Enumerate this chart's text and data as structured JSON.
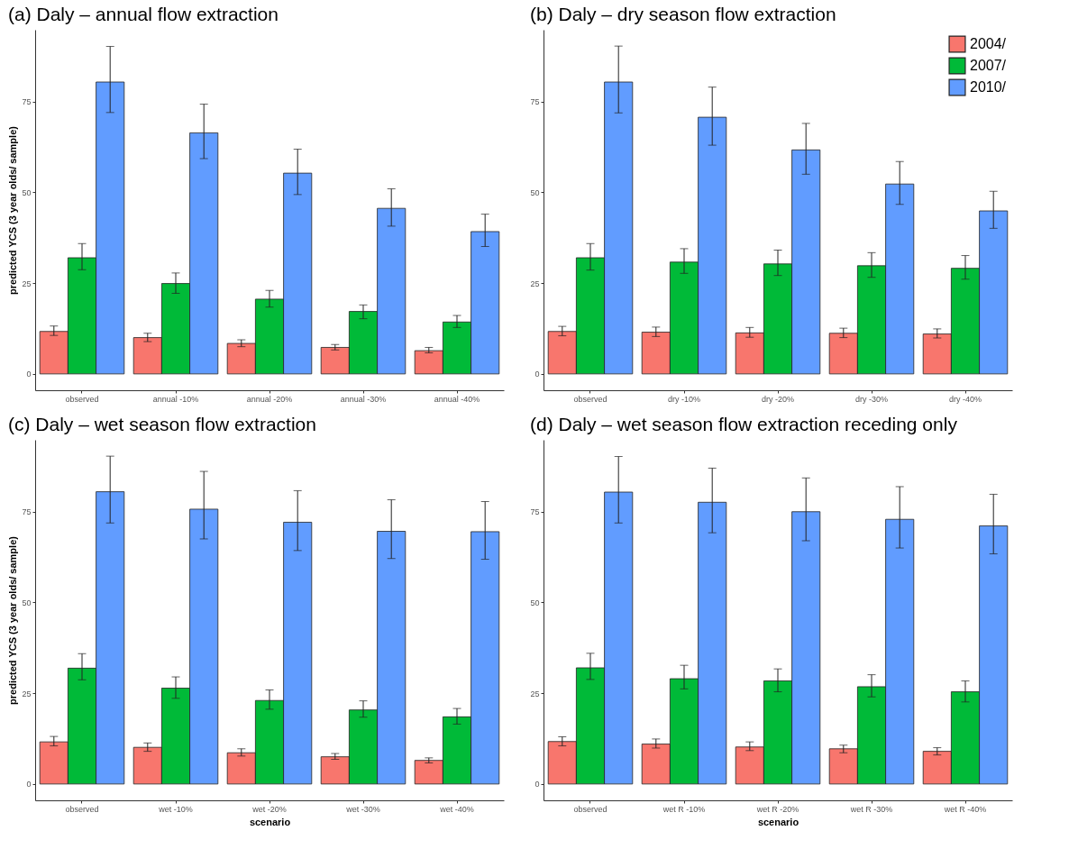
{
  "chart_data": [
    {
      "type": "bar",
      "title": "(a) Daly – annual flow extraction",
      "ylabel": "predicted YCS (3 year olds/ sample)",
      "categories": [
        "observed",
        "annual -10%",
        "annual -20%",
        "annual -30%",
        "annual -40%"
      ],
      "ylim": [
        -4.5,
        94.8
      ],
      "yticks": [
        0,
        25,
        50,
        75
      ],
      "legend": false,
      "series": [
        {
          "color": "#f8766d",
          "values": [
            11.7,
            10.0,
            8.4,
            7.3,
            6.4
          ],
          "errors": [
            [
              10.6,
              13.2
            ],
            [
              8.9,
              11.2
            ],
            [
              7.5,
              9.4
            ],
            [
              6.6,
              8.1
            ],
            [
              5.8,
              7.3
            ]
          ]
        },
        {
          "color": "#00ba38",
          "values": [
            32.0,
            24.9,
            20.6,
            17.2,
            14.3
          ],
          "errors": [
            [
              28.7,
              35.9
            ],
            [
              22.2,
              27.8
            ],
            [
              18.4,
              23.0
            ],
            [
              15.2,
              19.0
            ],
            [
              12.8,
              16.1
            ]
          ]
        },
        {
          "color": "#619cff",
          "values": [
            80.4,
            66.4,
            55.3,
            45.6,
            39.2
          ],
          "errors": [
            [
              72.0,
              90.2
            ],
            [
              59.3,
              74.3
            ],
            [
              49.4,
              61.9
            ],
            [
              40.7,
              51.0
            ],
            [
              35.1,
              44.0
            ]
          ]
        }
      ]
    },
    {
      "type": "bar",
      "title": "(b) Daly – dry season flow extraction",
      "categories": [
        "observed",
        "dry -10%",
        "dry -20%",
        "dry -30%",
        "dry -40%"
      ],
      "ylim": [
        -4.5,
        94.8
      ],
      "yticks": [
        0,
        25,
        50,
        75
      ],
      "legend": "top right",
      "series": [
        {
          "name": "2004/",
          "color": "#f8766d",
          "values": [
            11.7,
            11.5,
            11.3,
            11.2,
            11.0
          ],
          "errors": [
            [
              10.5,
              13.1
            ],
            [
              10.3,
              12.9
            ],
            [
              10.1,
              12.8
            ],
            [
              10.0,
              12.6
            ],
            [
              9.9,
              12.4
            ]
          ]
        },
        {
          "name": "2007/",
          "color": "#00ba38",
          "values": [
            32.0,
            30.8,
            30.3,
            29.8,
            29.1
          ],
          "errors": [
            [
              28.6,
              35.9
            ],
            [
              27.7,
              34.5
            ],
            [
              27.1,
              34.1
            ],
            [
              26.6,
              33.4
            ],
            [
              26.1,
              32.6
            ]
          ]
        },
        {
          "name": "2010/",
          "color": "#619cff",
          "values": [
            80.4,
            70.7,
            61.7,
            52.3,
            44.9
          ],
          "errors": [
            [
              71.9,
              90.3
            ],
            [
              63.0,
              79.0
            ],
            [
              55.0,
              69.0
            ],
            [
              46.7,
              58.5
            ],
            [
              40.1,
              50.3
            ]
          ]
        }
      ]
    },
    {
      "type": "bar",
      "title": "(c) Daly – wet season flow extraction",
      "xlabel": "scenario",
      "ylabel": "predicted YCS (3 year olds/ sample)",
      "categories": [
        "observed",
        "wet -10%",
        "wet -20%",
        "wet -30%",
        "wet -40%"
      ],
      "ylim": [
        -4.5,
        94.8
      ],
      "yticks": [
        0,
        25,
        50,
        75
      ],
      "legend": false,
      "series": [
        {
          "color": "#f8766d",
          "values": [
            11.6,
            10.1,
            8.6,
            7.5,
            6.5
          ],
          "errors": [
            [
              10.5,
              13.1
            ],
            [
              9.0,
              11.3
            ],
            [
              7.7,
              9.7
            ],
            [
              6.8,
              8.4
            ],
            [
              5.8,
              7.2
            ]
          ]
        },
        {
          "color": "#00ba38",
          "values": [
            31.9,
            26.4,
            23.0,
            20.4,
            18.5
          ],
          "errors": [
            [
              28.7,
              35.9
            ],
            [
              23.6,
              29.5
            ],
            [
              20.6,
              25.9
            ],
            [
              18.4,
              22.9
            ],
            [
              16.5,
              20.8
            ]
          ]
        },
        {
          "color": "#619cff",
          "values": [
            80.5,
            75.7,
            72.1,
            69.6,
            69.5
          ],
          "errors": [
            [
              71.9,
              90.3
            ],
            [
              67.5,
              86.1
            ],
            [
              64.3,
              80.8
            ],
            [
              62.1,
              78.3
            ],
            [
              61.9,
              77.8
            ]
          ]
        }
      ]
    },
    {
      "type": "bar",
      "title": "(d) Daly – wet season flow extraction receding only",
      "xlabel": "scenario",
      "categories": [
        "observed",
        "wet R -10%",
        "wet R -20%",
        "wet R -30%",
        "wet R -40%"
      ],
      "ylim": [
        -4.5,
        94.8
      ],
      "yticks": [
        0,
        25,
        50,
        75
      ],
      "legend": false,
      "series": [
        {
          "color": "#f8766d",
          "values": [
            11.7,
            11.0,
            10.2,
            9.7,
            9.0
          ],
          "errors": [
            [
              10.5,
              13.0
            ],
            [
              9.9,
              12.4
            ],
            [
              9.2,
              11.6
            ],
            [
              8.6,
              10.7
            ],
            [
              8.0,
              10.0
            ]
          ]
        },
        {
          "color": "#00ba38",
          "values": [
            32.0,
            29.0,
            28.4,
            26.8,
            25.4
          ],
          "errors": [
            [
              28.8,
              36.0
            ],
            [
              26.2,
              32.7
            ],
            [
              25.4,
              31.7
            ],
            [
              24.0,
              30.1
            ],
            [
              22.6,
              28.4
            ]
          ]
        },
        {
          "color": "#619cff",
          "values": [
            80.4,
            77.6,
            75.0,
            72.9,
            71.1
          ],
          "errors": [
            [
              71.9,
              90.2
            ],
            [
              69.2,
              87.0
            ],
            [
              67.0,
              84.3
            ],
            [
              65.0,
              81.9
            ],
            [
              63.4,
              79.8
            ]
          ]
        }
      ]
    }
  ]
}
